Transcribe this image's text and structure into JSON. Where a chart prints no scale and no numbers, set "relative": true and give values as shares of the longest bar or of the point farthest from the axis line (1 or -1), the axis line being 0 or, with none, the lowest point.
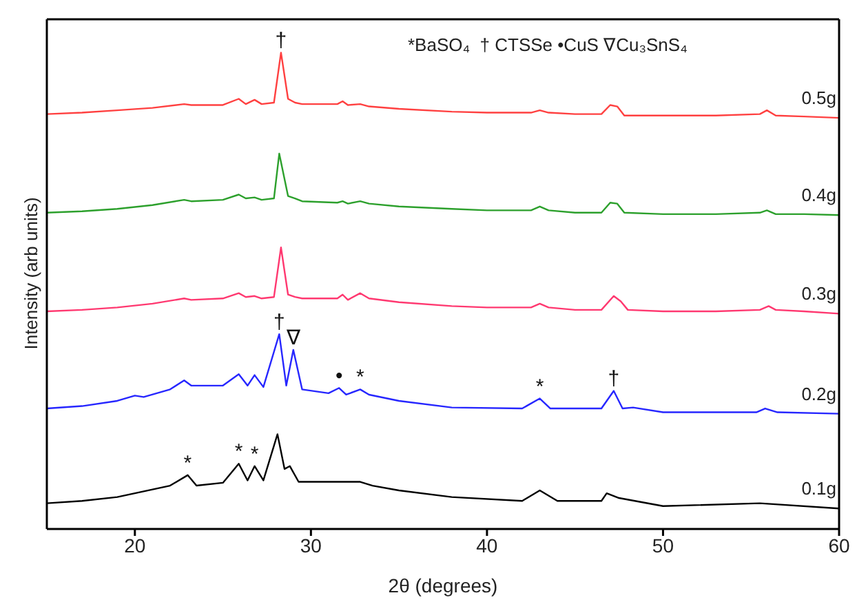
{
  "chart_data": {
    "type": "line",
    "relative": true,
    "xlabel": "2θ (degrees)",
    "ylabel": "Intensity (arb units)",
    "xlim": [
      15,
      60
    ],
    "xticks": [
      20,
      30,
      40,
      50,
      60
    ],
    "marker": "none",
    "line_style": "solid",
    "legend": false,
    "annotations": [
      "*BaSO₄  † CTSSe •CuS ∇Cu₃SnS₄",
      {
        "text": "†",
        "x": 28.3,
        "y": 1
      },
      {
        "text": "†",
        "x": 28.2,
        "y": 0.409
      },
      {
        "text": "∇",
        "x": 29,
        "y": 0.376
      },
      {
        "text": "•",
        "x": 31.6,
        "y": 0.296
      },
      {
        "text": "*",
        "x": 32.8,
        "y": 0.293
      },
      {
        "text": "*",
        "x": 43,
        "y": 0.274
      },
      {
        "text": "†",
        "x": 47.2,
        "y": 0.29
      },
      {
        "text": "*",
        "x": 23,
        "y": 0.113
      },
      {
        "text": "*",
        "x": 25.9,
        "y": 0.137
      },
      {
        "text": "*",
        "x": 26.8,
        "y": 0.132
      }
    ],
    "series": [
      {
        "name": "0.5g",
        "color": "#ff4040",
        "x": [
          15,
          17,
          19,
          21,
          22.8,
          23.2,
          25,
          25.9,
          26.3,
          26.8,
          27.2,
          27.9,
          28.3,
          28.7,
          29.1,
          29.5,
          31.5,
          31.8,
          32.1,
          32.8,
          33.3,
          35,
          38,
          40,
          42.5,
          43,
          43.5,
          45,
          46.5,
          47,
          47.4,
          47.8,
          50,
          53,
          55.5,
          55.9,
          56.4,
          58,
          60
        ],
        "values": [
          0.871,
          0.874,
          0.879,
          0.884,
          0.892,
          0.89,
          0.89,
          0.903,
          0.892,
          0.901,
          0.892,
          0.895,
          1,
          0.903,
          0.895,
          0.892,
          0.892,
          0.898,
          0.89,
          0.892,
          0.887,
          0.882,
          0.876,
          0.874,
          0.874,
          0.879,
          0.874,
          0.871,
          0.871,
          0.89,
          0.887,
          0.868,
          0.868,
          0.868,
          0.871,
          0.879,
          0.868,
          0.866,
          0.863
        ]
      },
      {
        "name": "0.4g",
        "color": "#2ca02c",
        "x": [
          15,
          17,
          19,
          21,
          22.8,
          23.2,
          25,
          25.9,
          26.3,
          26.8,
          27.2,
          27.9,
          28.2,
          28.7,
          29.1,
          29.5,
          31.5,
          31.8,
          32.1,
          32.8,
          33.3,
          35,
          38,
          40,
          42.5,
          43,
          43.5,
          45,
          46.5,
          47,
          47.4,
          47.8,
          50,
          53,
          55.5,
          55.9,
          56.4,
          58,
          60
        ],
        "values": [
          0.664,
          0.667,
          0.672,
          0.68,
          0.691,
          0.688,
          0.691,
          0.702,
          0.694,
          0.696,
          0.691,
          0.694,
          0.788,
          0.699,
          0.694,
          0.688,
          0.685,
          0.688,
          0.683,
          0.688,
          0.683,
          0.677,
          0.672,
          0.669,
          0.669,
          0.677,
          0.669,
          0.664,
          0.664,
          0.685,
          0.683,
          0.664,
          0.661,
          0.661,
          0.664,
          0.669,
          0.661,
          0.661,
          0.659
        ]
      },
      {
        "name": "0.3g",
        "color": "#ff3870",
        "x": [
          15,
          17,
          19,
          21,
          22.8,
          23.2,
          25,
          25.9,
          26.3,
          26.8,
          27.2,
          27.9,
          28.3,
          28.7,
          29.1,
          29.5,
          31.5,
          31.8,
          32.1,
          32.8,
          33.3,
          35,
          38,
          40,
          42.5,
          43,
          43.5,
          45,
          46.5,
          47.2,
          47.6,
          48,
          50,
          53,
          55.5,
          56,
          56.4,
          58,
          60
        ],
        "values": [
          0.457,
          0.46,
          0.465,
          0.473,
          0.484,
          0.481,
          0.484,
          0.495,
          0.487,
          0.489,
          0.484,
          0.487,
          0.591,
          0.492,
          0.487,
          0.484,
          0.484,
          0.492,
          0.481,
          0.495,
          0.484,
          0.476,
          0.468,
          0.465,
          0.465,
          0.473,
          0.465,
          0.46,
          0.46,
          0.489,
          0.478,
          0.46,
          0.457,
          0.457,
          0.46,
          0.468,
          0.46,
          0.457,
          0.452
        ]
      },
      {
        "name": "0.2g",
        "color": "#2626ff",
        "x": [
          15,
          17,
          19,
          20,
          20.5,
          22,
          22.8,
          23.2,
          25,
          25.9,
          26.4,
          26.8,
          27.3,
          28.2,
          28.6,
          29,
          29.5,
          31,
          31.6,
          32,
          32.8,
          33.3,
          35,
          38,
          42,
          43,
          43.6,
          46.5,
          47.2,
          47.7,
          48.3,
          50,
          55.3,
          55.8,
          56.5,
          60
        ],
        "values": [
          0.253,
          0.258,
          0.269,
          0.28,
          0.277,
          0.293,
          0.312,
          0.301,
          0.301,
          0.325,
          0.301,
          0.323,
          0.298,
          0.409,
          0.301,
          0.376,
          0.293,
          0.285,
          0.296,
          0.282,
          0.293,
          0.282,
          0.269,
          0.255,
          0.253,
          0.274,
          0.253,
          0.253,
          0.29,
          0.253,
          0.255,
          0.245,
          0.245,
          0.253,
          0.245,
          0.242
        ]
      },
      {
        "name": "0.1g",
        "color": "#000000",
        "x": [
          15,
          17,
          19,
          20,
          22,
          23,
          23.5,
          25,
          25.9,
          26.4,
          26.8,
          27.3,
          28.1,
          28.5,
          28.8,
          29.3,
          31.5,
          32.8,
          33.5,
          35,
          38,
          42,
          43,
          44,
          46.5,
          46.8,
          47.5,
          50,
          55.5,
          60
        ],
        "values": [
          0.054,
          0.059,
          0.067,
          0.075,
          0.091,
          0.113,
          0.091,
          0.097,
          0.137,
          0.102,
          0.132,
          0.102,
          0.199,
          0.126,
          0.132,
          0.099,
          0.099,
          0.099,
          0.091,
          0.081,
          0.067,
          0.059,
          0.081,
          0.059,
          0.059,
          0.075,
          0.065,
          0.048,
          0.054,
          0.043
        ]
      }
    ]
  }
}
